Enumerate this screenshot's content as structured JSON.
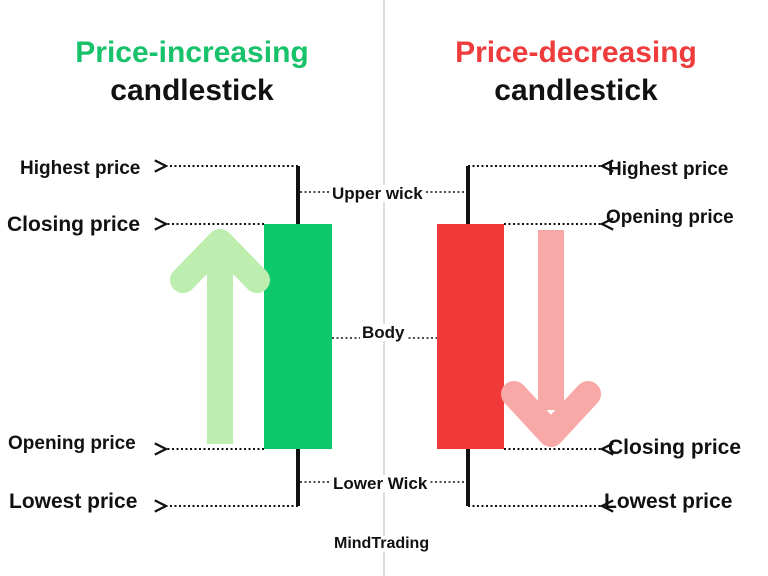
{
  "colors": {
    "increase": "#0ec96b",
    "decrease": "#f03a3a",
    "arrow_up": "#bdeeb0",
    "arrow_down": "#f9a8a8",
    "wick": "#111111",
    "divider": "#bdbdbd",
    "text": "#111111"
  },
  "left": {
    "title_line1": "Price-increasing",
    "title_line2": "candlestick",
    "highest": "Highest price",
    "closing": "Closing price",
    "opening": "Opening price",
    "lowest": "Lowest price"
  },
  "right": {
    "title_line1": "Price-decreasing",
    "title_line2": "candlestick",
    "highest": "Highest price",
    "opening": "Opening price",
    "closing": "Closing price",
    "lowest": "Lowest price"
  },
  "center": {
    "upper_wick": "Upper wick",
    "body": "Body",
    "lower_wick": "Lower Wick",
    "brand": "MindTrading"
  },
  "icons": [
    "arrow-up-icon",
    "arrow-down-icon",
    "dotted-arrow-left-icon",
    "dotted-arrow-right-icon"
  ]
}
